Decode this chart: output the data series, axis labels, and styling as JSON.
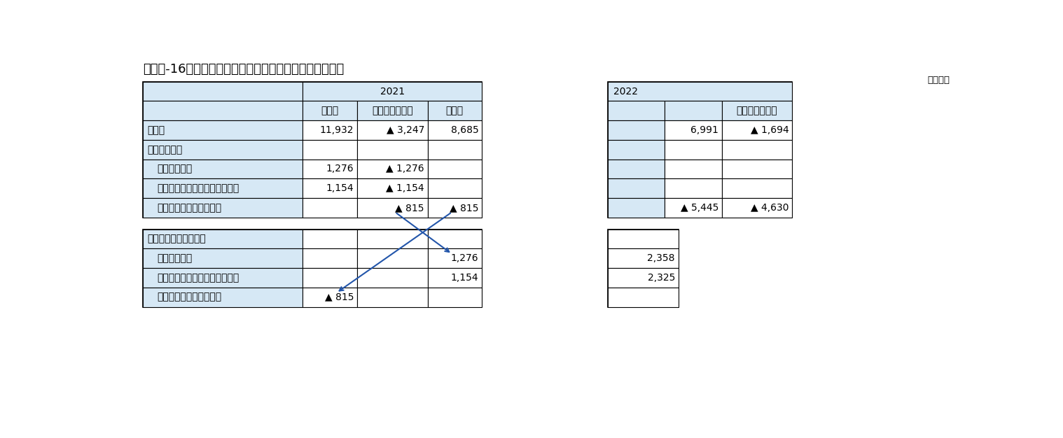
{
  "title": "【図表-16】基礎利益算出方法の変更（大手中堅９社計）",
  "unit_label": "（億円）",
  "table1": {
    "year_header": "2021",
    "col_headers": [
      "旧方式",
      "変更された金額",
      "新方式"
    ],
    "rows": [
      {
        "label": "利差益",
        "indent": 0,
        "bold": true,
        "values": [
          "11,932",
          "▲ 3,247",
          "8,685"
        ]
      },
      {
        "label": "利差益のうち",
        "indent": 0,
        "bold": true,
        "values": [
          "",
          "",
          ""
        ]
      },
      {
        "label": "投信解約損益",
        "indent": 1,
        "bold": false,
        "values": [
          "1,276",
          "▲ 1,276",
          ""
        ]
      },
      {
        "label": "有価証券償還益の為替変動部分",
        "indent": 1,
        "bold": false,
        "values": [
          "1,154",
          "▲ 1,154",
          ""
        ]
      },
      {
        "label": "為替に係るヘッジコスト",
        "indent": 1,
        "bold": false,
        "values": [
          "",
          "▲ 815",
          "▲ 815"
        ]
      }
    ]
  },
  "table2": {
    "year_header": "2022",
    "col_headers": [
      "",
      "新方式での増減"
    ],
    "rows": [
      {
        "values": [
          "6,991",
          "▲ 1,694"
        ]
      },
      {
        "values": [
          "",
          ""
        ]
      },
      {
        "values": [
          "",
          ""
        ]
      },
      {
        "values": [
          "",
          ""
        ]
      },
      {
        "values": [
          "▲ 5,445",
          "▲ 4,630"
        ]
      }
    ]
  },
  "table3": {
    "rows": [
      {
        "label": "キャピタル損益のうち",
        "indent": 0,
        "bold": true,
        "values": [
          "",
          "",
          ""
        ]
      },
      {
        "label": "投信解約損益",
        "indent": 1,
        "bold": false,
        "values": [
          "",
          "",
          "1,276"
        ]
      },
      {
        "label": "有価証券償還益の為替変動部分",
        "indent": 1,
        "bold": false,
        "values": [
          "",
          "",
          "1,154"
        ]
      },
      {
        "label": "為替に係るヘッジコスト",
        "indent": 1,
        "bold": false,
        "values": [
          "▲ 815",
          "",
          ""
        ]
      }
    ]
  },
  "table4": {
    "rows": [
      {
        "values": [
          ""
        ]
      },
      {
        "values": [
          "2,358"
        ]
      },
      {
        "values": [
          "2,325"
        ]
      },
      {
        "values": [
          ""
        ]
      }
    ]
  },
  "bg_light": "#d6e8f5",
  "white": "#ffffff",
  "black": "#000000",
  "arrow_color": "#2255aa"
}
